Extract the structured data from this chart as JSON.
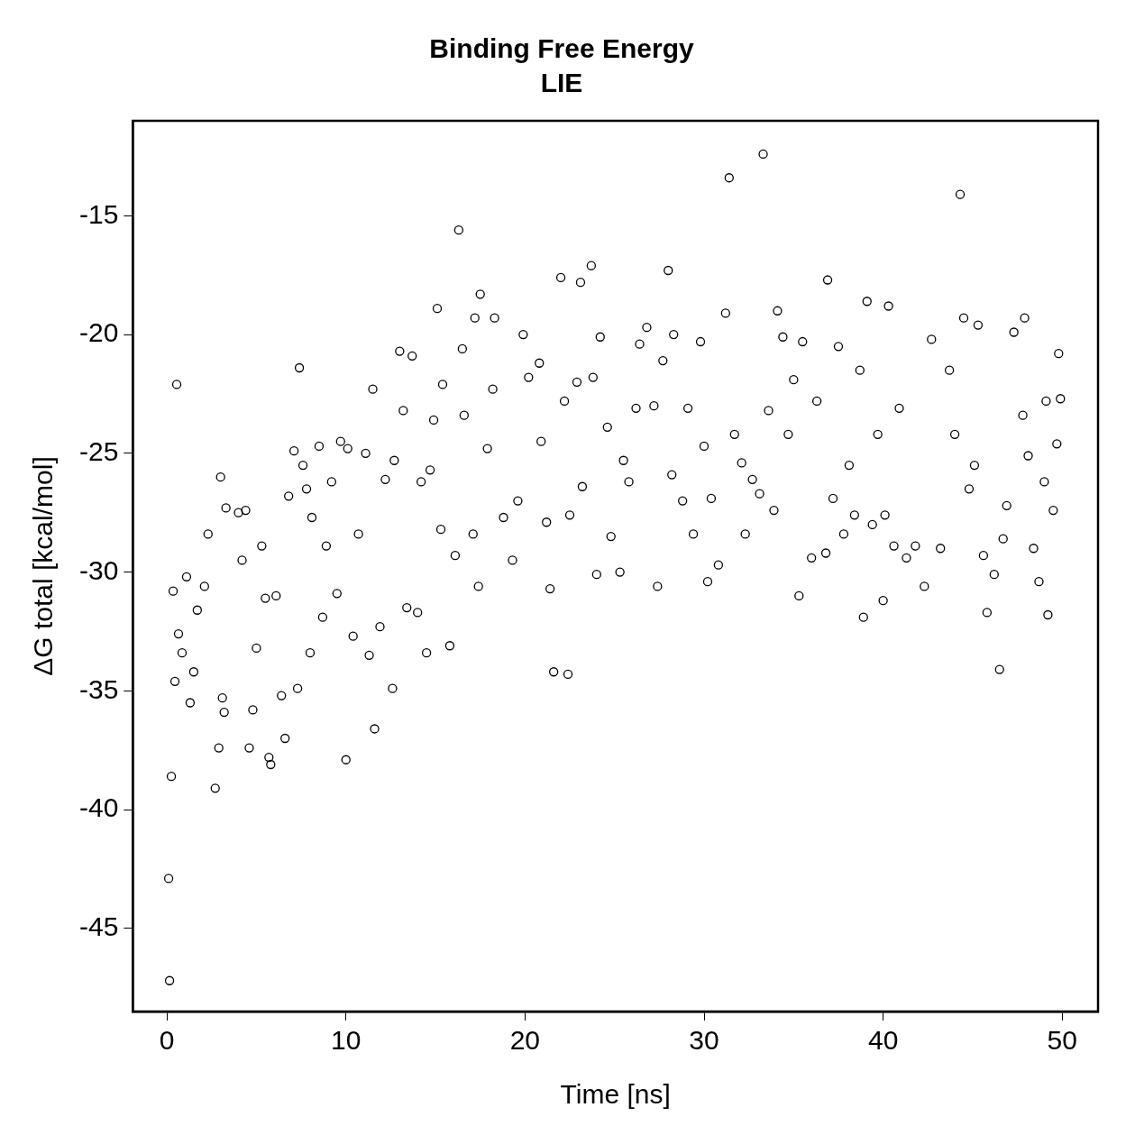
{
  "chart_data": {
    "type": "scatter",
    "title": "Binding Free Energy",
    "subtitle": "LIE",
    "xlabel": "Time [ns]",
    "ylabel": "ΔG total [kcal/mol]",
    "xlim": [
      -1.9,
      52
    ],
    "ylim": [
      -48.5,
      -11
    ],
    "xticks": [
      0,
      10,
      20,
      30,
      40,
      50
    ],
    "yticks": [
      -45,
      -40,
      -35,
      -30,
      -25,
      -20,
      -15
    ],
    "grid": false,
    "legend": false,
    "marker": "circle",
    "series": [
      {
        "color": "#000000",
        "x": [
          0.1,
          0.15,
          0.25,
          0.55,
          0.35,
          0.45,
          0.65,
          0.85,
          1.1,
          1.3,
          1.5,
          1.7,
          2.1,
          2.3,
          2.7,
          2.9,
          3.0,
          3.1,
          3.3,
          3.2,
          4.0,
          4.2,
          4.4,
          4.6,
          4.8,
          5.0,
          5.3,
          5.5,
          5.7,
          5.8,
          6.1,
          6.4,
          6.6,
          6.8,
          7.1,
          7.3,
          7.4,
          7.6,
          7.8,
          8.0,
          8.1,
          8.5,
          8.7,
          8.9,
          9.2,
          9.5,
          9.7,
          10.0,
          10.1,
          10.4,
          10.7,
          11.1,
          11.3,
          11.5,
          11.6,
          11.9,
          12.2,
          12.6,
          12.7,
          13.0,
          13.2,
          13.4,
          13.7,
          14.0,
          14.2,
          14.5,
          14.7,
          14.9,
          15.1,
          15.3,
          15.4,
          15.8,
          16.1,
          16.3,
          16.5,
          16.6,
          17.1,
          17.2,
          17.5,
          17.4,
          17.9,
          18.2,
          18.3,
          18.8,
          19.3,
          19.6,
          19.9,
          20.2,
          20.8,
          20.9,
          21.2,
          21.4,
          21.6,
          22.0,
          22.2,
          22.4,
          22.5,
          22.9,
          23.1,
          23.2,
          23.7,
          23.8,
          24.0,
          24.2,
          24.6,
          24.8,
          25.3,
          25.5,
          25.8,
          26.2,
          26.4,
          26.8,
          27.2,
          27.4,
          27.7,
          28.0,
          28.2,
          28.3,
          28.8,
          29.1,
          29.4,
          29.8,
          30.0,
          30.2,
          30.4,
          30.8,
          31.2,
          31.4,
          31.7,
          32.1,
          32.3,
          32.7,
          33.1,
          33.3,
          33.6,
          33.9,
          34.1,
          34.4,
          34.7,
          35.0,
          35.3,
          35.5,
          36.0,
          36.3,
          36.8,
          36.9,
          37.2,
          37.5,
          37.8,
          38.1,
          38.4,
          38.7,
          38.9,
          39.1,
          39.4,
          39.7,
          40.0,
          40.1,
          40.3,
          40.6,
          40.9,
          41.3,
          41.8,
          42.3,
          42.7,
          43.2,
          43.7,
          44.0,
          44.3,
          44.5,
          44.8,
          45.1,
          45.3,
          45.6,
          45.8,
          46.2,
          46.5,
          46.7,
          46.9,
          47.3,
          47.8,
          47.9,
          48.1,
          48.4,
          48.7,
          49.0,
          49.1,
          49.2,
          49.5,
          49.7,
          49.8,
          49.9
        ],
        "values": [
          -42.9,
          -47.2,
          -38.6,
          -22.1,
          -30.8,
          -34.6,
          -32.6,
          -33.4,
          -30.2,
          -35.5,
          -34.2,
          -31.6,
          -30.6,
          -28.4,
          -39.1,
          -37.4,
          -26.0,
          -35.3,
          -27.3,
          -35.9,
          -27.5,
          -29.5,
          -27.4,
          -37.4,
          -35.8,
          -33.2,
          -28.9,
          -31.1,
          -37.8,
          -38.1,
          -31.0,
          -35.2,
          -37.0,
          -26.8,
          -24.9,
          -34.9,
          -21.4,
          -25.5,
          -26.5,
          -33.4,
          -27.7,
          -24.7,
          -31.9,
          -28.9,
          -26.2,
          -30.9,
          -24.5,
          -37.9,
          -24.8,
          -32.7,
          -28.4,
          -25.0,
          -33.5,
          -22.3,
          -36.6,
          -32.3,
          -26.1,
          -34.9,
          -25.3,
          -20.7,
          -23.2,
          -31.5,
          -20.9,
          -31.7,
          -26.2,
          -33.4,
          -25.7,
          -23.6,
          -18.9,
          -28.2,
          -22.1,
          -33.1,
          -29.3,
          -15.6,
          -20.6,
          -23.4,
          -28.4,
          -19.3,
          -18.3,
          -30.6,
          -24.8,
          -22.3,
          -19.3,
          -27.7,
          -29.5,
          -27.0,
          -20.0,
          -21.8,
          -21.2,
          -24.5,
          -27.9,
          -30.7,
          -34.2,
          -17.6,
          -22.8,
          -34.3,
          -27.6,
          -22.0,
          -17.8,
          -26.4,
          -17.1,
          -21.8,
          -30.1,
          -20.1,
          -23.9,
          -28.5,
          -30.0,
          -25.3,
          -26.2,
          -23.1,
          -20.4,
          -19.7,
          -23.0,
          -30.6,
          -21.1,
          -17.3,
          -25.9,
          -20.0,
          -27.0,
          -23.1,
          -28.4,
          -20.3,
          -24.7,
          -30.4,
          -26.9,
          -29.7,
          -19.1,
          -13.4,
          -24.2,
          -25.4,
          -28.4,
          -26.1,
          -26.7,
          -12.4,
          -23.2,
          -27.4,
          -19.0,
          -20.1,
          -24.2,
          -21.9,
          -31.0,
          -20.3,
          -29.4,
          -22.8,
          -29.2,
          -17.7,
          -26.9,
          -20.5,
          -28.4,
          -25.5,
          -27.6,
          -21.5,
          -31.9,
          -18.6,
          -28.0,
          -24.2,
          -31.2,
          -27.6,
          -18.8,
          -28.9,
          -23.1,
          -29.4,
          -28.9,
          -30.6,
          -20.2,
          -29.0,
          -21.5,
          -24.2,
          -14.1,
          -19.3,
          -26.5,
          -25.5,
          -19.6,
          -29.3,
          -31.7,
          -30.1,
          -34.1,
          -28.6,
          -27.2,
          -19.9,
          -23.4,
          -19.3,
          -25.1,
          -29.0,
          -30.4,
          -26.2,
          -22.8,
          -31.8,
          -27.4,
          -24.6,
          -20.8,
          -22.7
        ]
      }
    ]
  }
}
